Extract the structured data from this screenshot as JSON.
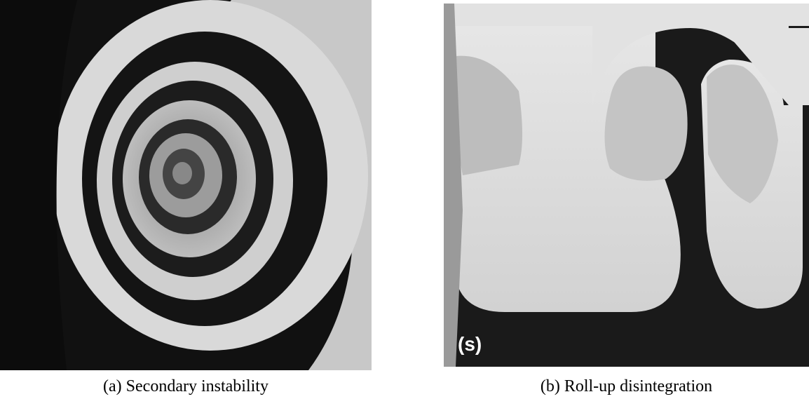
{
  "figure": {
    "panels": [
      {
        "caption": "(a) Secondary instability"
      },
      {
        "caption": "(b) Roll-up disintegration",
        "label": "(s)"
      }
    ]
  }
}
